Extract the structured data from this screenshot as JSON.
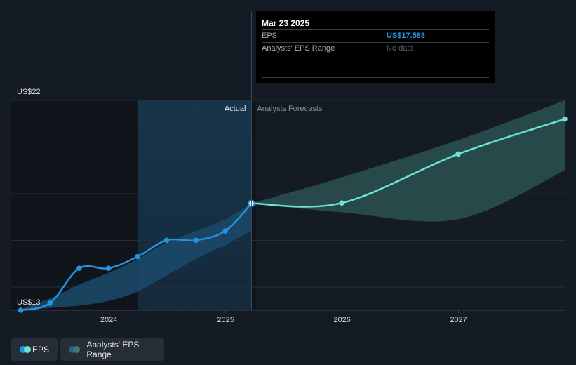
{
  "tooltip": {
    "date": "Mar 23 2025",
    "rows": [
      {
        "label": "EPS",
        "value": "US$17.583"
      },
      {
        "label": "Analysts' EPS Range",
        "value": "No data"
      }
    ]
  },
  "legend": {
    "eps": "EPS",
    "range": "Analysts' EPS Range"
  },
  "colors": {
    "background": "#151b24",
    "actual_line": "#2394df",
    "forecast_line": "#6de2cf",
    "actual_band": "#1b4a6b",
    "forecast_band": "#2e5a55"
  },
  "chart_data": {
    "type": "line",
    "y_axis_labels": [
      "US$22",
      "US$13"
    ],
    "x_tick_labels": [
      "2024",
      "2025",
      "2026",
      "2027"
    ],
    "region_labels": {
      "actual": "Actual",
      "forecast": "Analysts Forecasts"
    },
    "xlim": [
      "2023-03-01",
      "2027-11-30"
    ],
    "ylim": [
      13,
      22
    ],
    "highlight_date": "2025-03-23",
    "shaded_period_start": "2024-03-31",
    "series": [
      {
        "name": "EPS",
        "kind": "actual",
        "points": [
          [
            "2023-03-31",
            13.0
          ],
          [
            "2023-06-30",
            13.3
          ],
          [
            "2023-09-30",
            14.8
          ],
          [
            "2023-12-31",
            14.8
          ],
          [
            "2024-03-31",
            15.3
          ],
          [
            "2024-06-30",
            16.0
          ],
          [
            "2024-09-30",
            16.0
          ],
          [
            "2024-12-31",
            16.4
          ],
          [
            "2025-03-23",
            17.58
          ]
        ]
      },
      {
        "name": "EPS",
        "kind": "forecast",
        "points": [
          [
            "2025-03-23",
            17.58
          ],
          [
            "2025-12-31",
            17.6
          ],
          [
            "2026-12-31",
            19.7
          ],
          [
            "2027-11-30",
            21.2
          ]
        ]
      }
    ],
    "ranges": [
      {
        "name": "Analysts' EPS Range",
        "kind": "actual",
        "upper": [
          [
            "2023-03-31",
            13.05
          ],
          [
            "2023-06-30",
            13.5
          ],
          [
            "2023-09-30",
            14.1
          ],
          [
            "2023-12-31",
            14.6
          ],
          [
            "2024-03-31",
            15.2
          ],
          [
            "2024-06-30",
            15.9
          ],
          [
            "2024-09-30",
            16.4
          ],
          [
            "2024-12-31",
            16.9
          ],
          [
            "2025-03-23",
            17.58
          ]
        ],
        "lower": [
          [
            "2023-03-31",
            13.0
          ],
          [
            "2023-06-30",
            13.1
          ],
          [
            "2023-09-30",
            13.2
          ],
          [
            "2023-12-31",
            13.4
          ],
          [
            "2024-03-31",
            13.8
          ],
          [
            "2024-06-30",
            14.5
          ],
          [
            "2024-09-30",
            15.2
          ],
          [
            "2024-12-31",
            15.8
          ],
          [
            "2025-03-23",
            16.4
          ]
        ]
      },
      {
        "name": "Analysts' EPS Range",
        "kind": "forecast",
        "upper": [
          [
            "2025-03-23",
            17.58
          ],
          [
            "2025-12-31",
            18.7
          ],
          [
            "2026-12-31",
            20.3
          ],
          [
            "2027-11-30",
            22.0
          ]
        ],
        "lower": [
          [
            "2025-03-23",
            17.58
          ],
          [
            "2025-12-31",
            17.2
          ],
          [
            "2026-12-31",
            16.9
          ],
          [
            "2027-11-30",
            19.0
          ]
        ]
      }
    ]
  }
}
